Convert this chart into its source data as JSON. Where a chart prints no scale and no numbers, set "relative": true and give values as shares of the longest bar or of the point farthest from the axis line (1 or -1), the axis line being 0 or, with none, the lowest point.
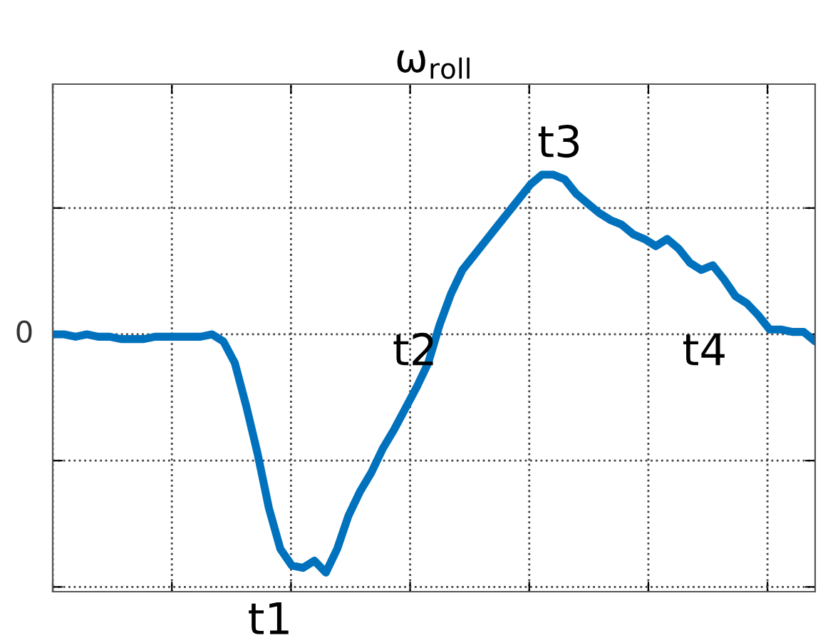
{
  "chart_data": {
    "type": "line",
    "title": "ω$_{roll}$",
    "relative": true,
    "grid": true,
    "color": "#0072bd",
    "categories": [
      null,
      null,
      null,
      null,
      null,
      null,
      null,
      null,
      null,
      null,
      null,
      null,
      null,
      null,
      null,
      null,
      null,
      null,
      null,
      null,
      null,
      null,
      null,
      null,
      null,
      null,
      null,
      null,
      null,
      null,
      null,
      null,
      null,
      null,
      null,
      null,
      null,
      null,
      null,
      null,
      null,
      null,
      null,
      null,
      null,
      null,
      null,
      null,
      null,
      null,
      null,
      null,
      null,
      null,
      null,
      null,
      null,
      null,
      null,
      null,
      null,
      null,
      null,
      null,
      null,
      null,
      null,
      null
    ],
    "values": [
      0,
      0,
      -0.01,
      0,
      -0.01,
      -0.01,
      -0.02,
      -0.02,
      -0.02,
      -0.01,
      -0.01,
      -0.01,
      -0.01,
      -0.01,
      0,
      -0.03,
      -0.12,
      -0.3,
      -0.5,
      -0.73,
      -0.9,
      -0.97,
      -0.98,
      -0.95,
      -1,
      -0.9,
      -0.76,
      -0.66,
      -0.58,
      -0.48,
      -0.4,
      -0.31,
      -0.22,
      -0.12,
      0.04,
      0.17,
      0.27,
      0.33,
      0.39,
      0.45,
      0.51,
      0.57,
      0.63,
      0.67,
      0.67,
      0.65,
      0.59,
      0.55,
      0.51,
      0.48,
      0.46,
      0.42,
      0.4,
      0.37,
      0.4,
      0.36,
      0.3,
      0.27,
      0.29,
      0.23,
      0.16,
      0.13,
      0.08,
      0.02,
      0.02,
      0.01,
      0.01,
      -0.03
    ],
    "annotations": [
      "0",
      "t1",
      "t2",
      "t3",
      "t4"
    ]
  }
}
